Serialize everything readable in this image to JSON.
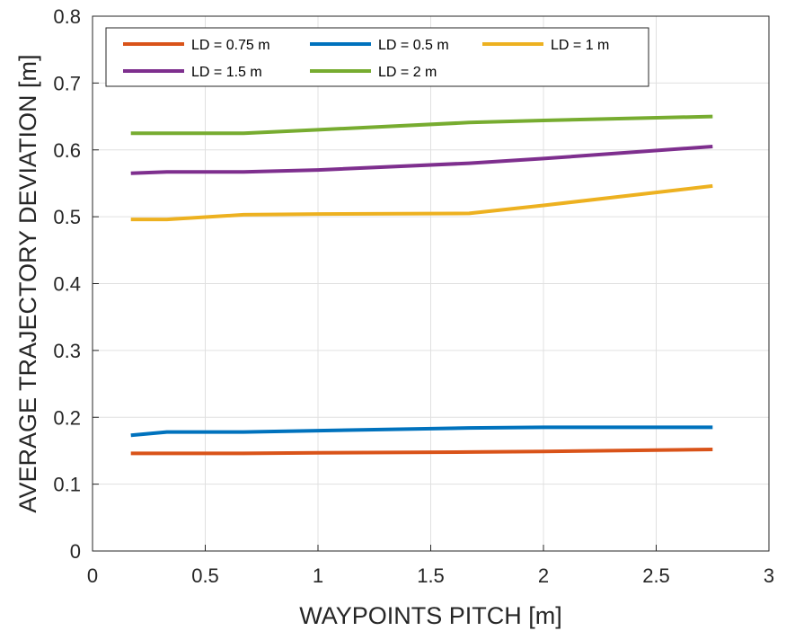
{
  "chart_data": {
    "type": "line",
    "title": "",
    "xlabel": "WAYPOINTS PITCH [m]",
    "ylabel": "AVERAGE TRAJECTORY DEVIATION [m]",
    "xlim": [
      0,
      3
    ],
    "ylim": [
      0,
      0.8
    ],
    "xticks": [
      0,
      0.5,
      1,
      1.5,
      2,
      2.5,
      3
    ],
    "xtick_labels": [
      "0",
      "0.5",
      "1",
      "1.5",
      "2",
      "2.5",
      "3"
    ],
    "yticks": [
      0,
      0.1,
      0.2,
      0.3,
      0.4,
      0.5,
      0.6,
      0.7,
      0.8
    ],
    "ytick_labels": [
      "0",
      "0.1",
      "0.2",
      "0.3",
      "0.4",
      "0.5",
      "0.6",
      "0.7",
      "0.8"
    ],
    "grid": true,
    "legend_position": "top-left",
    "series": [
      {
        "name": "LD = 0.75 m",
        "color": "#D95319",
        "x": [
          0.17,
          0.33,
          0.67,
          1.0,
          1.67,
          2.0,
          2.75
        ],
        "y": [
          0.146,
          0.146,
          0.146,
          0.147,
          0.148,
          0.149,
          0.152
        ]
      },
      {
        "name": "LD = 0.5 m",
        "color": "#0072BD",
        "x": [
          0.17,
          0.33,
          0.67,
          1.0,
          1.67,
          2.0,
          2.75
        ],
        "y": [
          0.173,
          0.178,
          0.178,
          0.18,
          0.184,
          0.185,
          0.185
        ]
      },
      {
        "name": "LD = 1 m",
        "color": "#EDB120",
        "x": [
          0.17,
          0.33,
          0.67,
          1.0,
          1.67,
          2.0,
          2.75
        ],
        "y": [
          0.496,
          0.496,
          0.503,
          0.504,
          0.505,
          0.517,
          0.546
        ]
      },
      {
        "name": "LD = 1.5 m",
        "color": "#7E2F8E",
        "x": [
          0.17,
          0.33,
          0.67,
          1.0,
          1.67,
          2.0,
          2.75
        ],
        "y": [
          0.565,
          0.567,
          0.567,
          0.57,
          0.58,
          0.587,
          0.605
        ]
      },
      {
        "name": "LD = 2 m",
        "color": "#77AC30",
        "x": [
          0.17,
          0.33,
          0.67,
          1.0,
          1.67,
          2.0,
          2.75
        ],
        "y": [
          0.625,
          0.625,
          0.625,
          0.63,
          0.641,
          0.644,
          0.65
        ]
      }
    ]
  }
}
